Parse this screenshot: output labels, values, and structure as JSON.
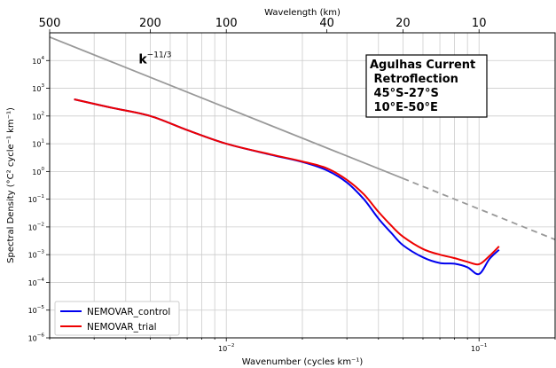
{
  "chart_data": {
    "type": "line",
    "xscale": "log",
    "yscale": "log",
    "xlim": [
      0.002,
      0.2
    ],
    "ylim": [
      1e-06,
      100000.0
    ],
    "xlabel": "Wavenumber (cycles km⁻¹)",
    "ylabel": "Spectral Density (°C² cycle⁻¹ km⁻¹)",
    "top_axis": {
      "label": "Wavelength (km)",
      "ticks": [
        {
          "km": 500,
          "label": "500"
        },
        {
          "km": 200,
          "label": "200"
        },
        {
          "km": 100,
          "label": "100"
        },
        {
          "km": 40,
          "label": "40"
        },
        {
          "km": 20,
          "label": "20"
        },
        {
          "km": 10,
          "label": "10"
        }
      ]
    },
    "xticks": [
      {
        "value": 0.01,
        "base": "10",
        "exp": "−2"
      },
      {
        "value": 0.1,
        "base": "10",
        "exp": "−1"
      }
    ],
    "yticks": [
      {
        "value": 1e-06,
        "base": "10",
        "exp": "−6"
      },
      {
        "value": 1e-05,
        "base": "10",
        "exp": "−5"
      },
      {
        "value": 0.0001,
        "base": "10",
        "exp": "−4"
      },
      {
        "value": 0.001,
        "base": "10",
        "exp": "−3"
      },
      {
        "value": 0.01,
        "base": "10",
        "exp": "−2"
      },
      {
        "value": 0.1,
        "base": "10",
        "exp": "−1"
      },
      {
        "value": 1.0,
        "base": "10",
        "exp": "0"
      },
      {
        "value": 10.0,
        "base": "10",
        "exp": "1"
      },
      {
        "value": 100.0,
        "base": "10",
        "exp": "2"
      },
      {
        "value": 1000.0,
        "base": "10",
        "exp": "3"
      },
      {
        "value": 10000.0,
        "base": "10",
        "exp": "4"
      }
    ],
    "grid": true,
    "legend_position": "bottom-left",
    "reference_line": {
      "label_base": "k",
      "label_exp": "−11/3",
      "color": "#999999",
      "solid": [
        [
          0.002,
          70000.0
        ],
        [
          0.05,
          0.56
        ]
      ],
      "dashed": [
        [
          0.05,
          0.56
        ],
        [
          0.2,
          0.0035
        ]
      ]
    },
    "annotation": [
      "Agulhas Current",
      " Retroflection",
      " 45°S-27°S",
      " 10°E-50°E"
    ],
    "series": [
      {
        "name": "NEMOVAR_control",
        "color": "#0000ee",
        "points": [
          [
            0.0025,
            400
          ],
          [
            0.0035,
            200
          ],
          [
            0.005,
            100
          ],
          [
            0.007,
            31
          ],
          [
            0.01,
            10
          ],
          [
            0.015,
            4
          ],
          [
            0.02,
            2.2
          ],
          [
            0.025,
            1.1
          ],
          [
            0.03,
            0.4
          ],
          [
            0.035,
            0.1
          ],
          [
            0.04,
            0.02
          ],
          [
            0.045,
            0.006
          ],
          [
            0.05,
            0.0022
          ],
          [
            0.06,
            0.0008
          ],
          [
            0.07,
            0.0005
          ],
          [
            0.08,
            0.00047
          ],
          [
            0.09,
            0.00035
          ],
          [
            0.1,
            0.0002
          ],
          [
            0.11,
            0.0007
          ],
          [
            0.12,
            0.0015
          ]
        ]
      },
      {
        "name": "NEMOVAR_trial",
        "color": "#ee0000",
        "points": [
          [
            0.0025,
            400
          ],
          [
            0.0035,
            200
          ],
          [
            0.005,
            100
          ],
          [
            0.007,
            31
          ],
          [
            0.01,
            10
          ],
          [
            0.015,
            4.1
          ],
          [
            0.02,
            2.3
          ],
          [
            0.025,
            1.3
          ],
          [
            0.03,
            0.5
          ],
          [
            0.035,
            0.15
          ],
          [
            0.04,
            0.035
          ],
          [
            0.045,
            0.011
          ],
          [
            0.05,
            0.0045
          ],
          [
            0.06,
            0.0016
          ],
          [
            0.07,
            0.001
          ],
          [
            0.08,
            0.00075
          ],
          [
            0.09,
            0.00055
          ],
          [
            0.1,
            0.00045
          ],
          [
            0.11,
            0.0009
          ],
          [
            0.12,
            0.002
          ]
        ]
      }
    ]
  }
}
